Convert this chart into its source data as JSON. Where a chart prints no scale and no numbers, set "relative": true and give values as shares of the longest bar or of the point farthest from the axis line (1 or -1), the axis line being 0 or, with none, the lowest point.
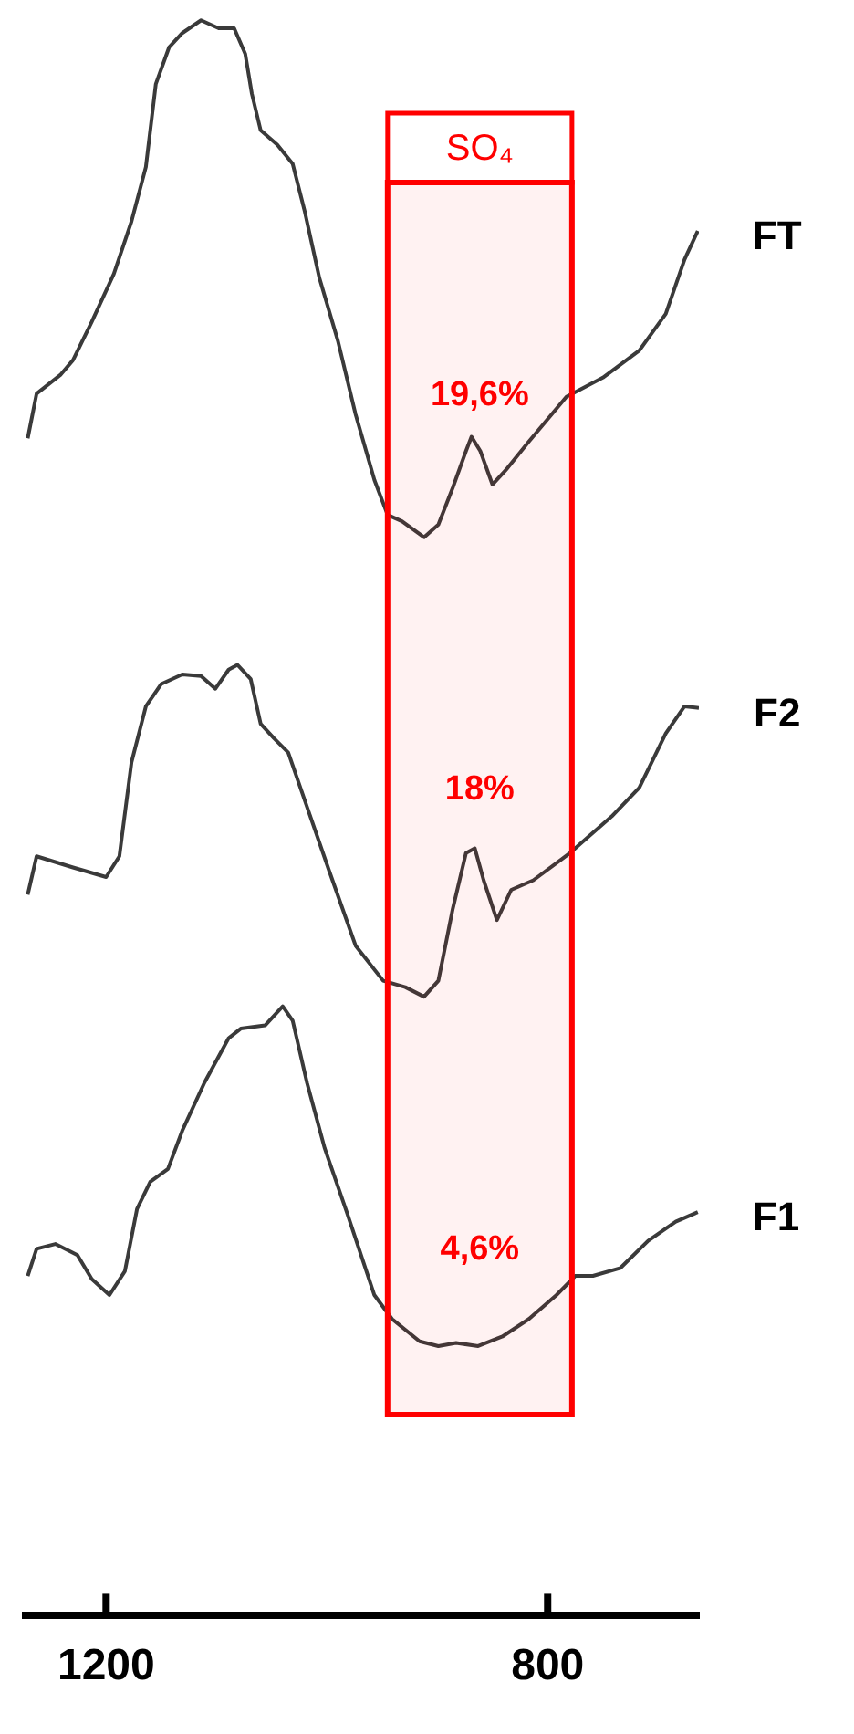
{
  "chart_data": {
    "type": "line",
    "relative": true,
    "xlim": [
      1273,
      663
    ],
    "xticks": [
      1200,
      800
    ],
    "grid": false,
    "legend": false,
    "marker": "none",
    "line_style": "solid",
    "series": [
      {
        "name": "FT",
        "color": "#3a3a3a",
        "x": [
          1271,
          1263,
          1241,
          1230,
          1213,
          1193,
          1177,
          1164,
          1155,
          1143,
          1131,
          1114,
          1098,
          1084,
          1074,
          1068,
          1060,
          1045,
          1031,
          1020,
          1007,
          990,
          974,
          957,
          945,
          932,
          912,
          899,
          886,
          874,
          869,
          861,
          850,
          838,
          817,
          783,
          750,
          717,
          693,
          676,
          664
        ],
        "values": [
          0.738,
          0.766,
          0.778,
          0.787,
          0.811,
          0.841,
          0.874,
          0.908,
          0.96,
          0.983,
          0.992,
          1,
          0.995,
          0.995,
          0.979,
          0.954,
          0.931,
          0.922,
          0.91,
          0.88,
          0.839,
          0.799,
          0.753,
          0.712,
          0.69,
          0.686,
          0.676,
          0.684,
          0.707,
          0.73,
          0.739,
          0.73,
          0.709,
          0.718,
          0.736,
          0.764,
          0.776,
          0.793,
          0.816,
          0.85,
          0.868
        ]
      },
      {
        "name": "F2",
        "color": "#3a3a3a",
        "x": [
          1271,
          1263,
          1230,
          1200,
          1188,
          1177,
          1164,
          1150,
          1131,
          1114,
          1101,
          1089,
          1081,
          1069,
          1060,
          1048,
          1035,
          1018,
          998,
          974,
          949,
          929,
          912,
          899,
          886,
          874,
          866,
          858,
          846,
          833,
          813,
          780,
          742,
          717,
          693,
          676,
          663
        ],
        "values": [
          0.452,
          0.476,
          0.469,
          0.463,
          0.476,
          0.535,
          0.57,
          0.584,
          0.59,
          0.589,
          0.581,
          0.593,
          0.596,
          0.587,
          0.559,
          0.55,
          0.541,
          0.507,
          0.467,
          0.42,
          0.398,
          0.394,
          0.388,
          0.398,
          0.443,
          0.478,
          0.481,
          0.461,
          0.436,
          0.455,
          0.461,
          0.478,
          0.501,
          0.519,
          0.553,
          0.57,
          0.569
        ]
      },
      {
        "name": "F1",
        "color": "#3a3a3a",
        "x": [
          1271,
          1263,
          1246,
          1226,
          1213,
          1197,
          1183,
          1172,
          1160,
          1144,
          1131,
          1111,
          1089,
          1078,
          1056,
          1040,
          1031,
          1018,
          1002,
          982,
          957,
          941,
          916,
          899,
          883,
          863,
          841,
          817,
          792,
          775,
          759,
          734,
          709,
          684,
          664
        ],
        "values": [
          0.213,
          0.23,
          0.233,
          0.226,
          0.211,
          0.201,
          0.216,
          0.255,
          0.272,
          0.28,
          0.304,
          0.334,
          0.362,
          0.368,
          0.37,
          0.382,
          0.373,
          0.334,
          0.293,
          0.253,
          0.201,
          0.186,
          0.172,
          0.169,
          0.171,
          0.169,
          0.175,
          0.186,
          0.201,
          0.213,
          0.213,
          0.218,
          0.235,
          0.247,
          0.253
        ]
      }
    ],
    "bands": [
      {
        "axis": "x",
        "from": 945,
        "to": 778,
        "label": "SO₄",
        "color": "#ff0000"
      }
    ],
    "annotations": [
      "19,6%",
      "18%",
      "4,6%"
    ]
  }
}
